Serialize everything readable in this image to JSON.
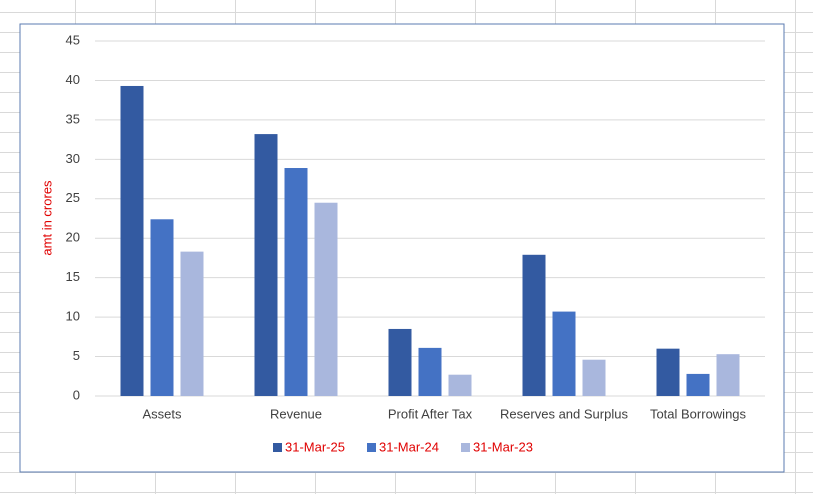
{
  "chart_data": {
    "type": "bar",
    "ylabel": "amt in crores",
    "categories": [
      "Assets",
      "Revenue",
      "Profit After Tax",
      "Reserves and Surplus",
      "Total Borrowings"
    ],
    "series": [
      {
        "name": "31-Mar-25",
        "color": "#335aa1",
        "values": [
          39.3,
          33.2,
          8.5,
          17.9,
          6.0
        ]
      },
      {
        "name": "31-Mar-24",
        "color": "#4472c4",
        "values": [
          22.4,
          28.9,
          6.1,
          10.7,
          2.8
        ]
      },
      {
        "name": "31-Mar-23",
        "color": "#a9b7dd",
        "values": [
          18.3,
          24.5,
          2.7,
          4.6,
          5.3
        ]
      }
    ],
    "ylim": [
      0,
      45
    ],
    "yticks": [
      0,
      5,
      10,
      15,
      20,
      25,
      30,
      35,
      40,
      45
    ],
    "grid": true,
    "legend": "bottom",
    "label_color": "#e00000"
  }
}
